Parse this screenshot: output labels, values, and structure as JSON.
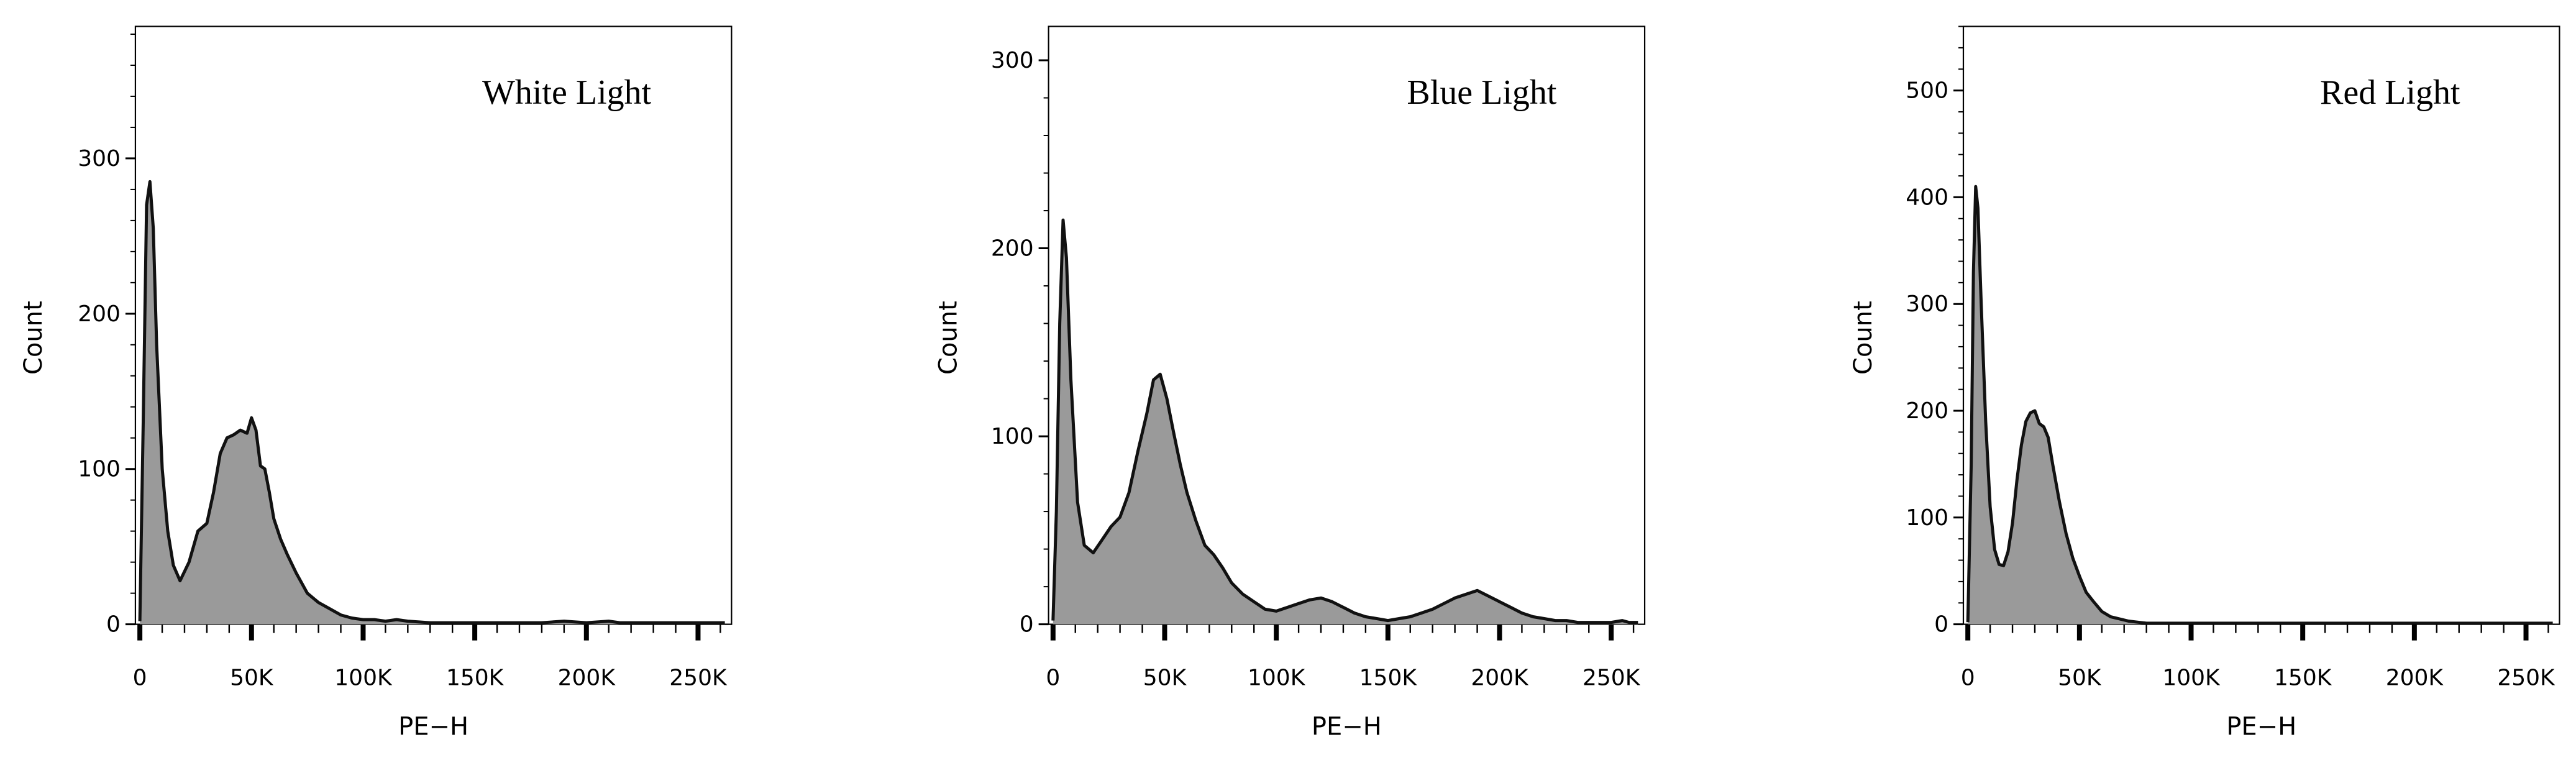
{
  "chart_data": [
    {
      "type": "area",
      "title": "White Light",
      "xlabel": "PE−H",
      "ylabel": "Count",
      "xlim": [
        -2000,
        265000
      ],
      "ylim": [
        0,
        385
      ],
      "xticks": [
        0,
        50000,
        100000,
        150000,
        200000,
        250000
      ],
      "xtick_labels": [
        "0",
        "50K",
        "100K",
        "150K",
        "200K",
        "250K"
      ],
      "yticks": [
        0,
        100,
        200,
        300
      ],
      "ytick_labels": [
        "0",
        "100",
        "200",
        "300"
      ],
      "fill_color": "#9a9a9a",
      "line_color": "#111111",
      "grid": false,
      "x": [
        0,
        1500,
        3000,
        4500,
        6000,
        7500,
        10000,
        12500,
        15000,
        18000,
        22000,
        26000,
        30000,
        33000,
        36000,
        39000,
        42000,
        45000,
        48000,
        50000,
        52000,
        54000,
        56000,
        58000,
        60000,
        63000,
        66000,
        70000,
        75000,
        80000,
        85000,
        90000,
        95000,
        100000,
        105000,
        110000,
        115000,
        120000,
        130000,
        150000,
        180000,
        190000,
        200000,
        210000,
        215000,
        230000,
        250000,
        262000
      ],
      "y": [
        2,
        130,
        270,
        285,
        255,
        180,
        100,
        60,
        38,
        28,
        40,
        60,
        65,
        85,
        110,
        120,
        122,
        125,
        123,
        133,
        125,
        102,
        100,
        85,
        68,
        55,
        45,
        33,
        20,
        14,
        10,
        6,
        4,
        3,
        3,
        2,
        3,
        2,
        1,
        1,
        1,
        2,
        1,
        2,
        1,
        1,
        1,
        1
      ]
    },
    {
      "type": "area",
      "title": "Blue Light",
      "xlabel": "PE−H",
      "ylabel": "Count",
      "xlim": [
        -2000,
        265000
      ],
      "ylim": [
        0,
        318
      ],
      "xticks": [
        0,
        50000,
        100000,
        150000,
        200000,
        250000
      ],
      "xtick_labels": [
        "0",
        "50K",
        "100K",
        "150K",
        "200K",
        "250K"
      ],
      "yticks": [
        0,
        100,
        200,
        300
      ],
      "ytick_labels": [
        "0",
        "100",
        "200",
        "300"
      ],
      "fill_color": "#9a9a9a",
      "line_color": "#111111",
      "grid": false,
      "x": [
        0,
        1500,
        3000,
        4500,
        6000,
        8000,
        11000,
        14000,
        18000,
        22000,
        26000,
        30000,
        34000,
        38000,
        42000,
        45000,
        48000,
        51000,
        54000,
        57000,
        60000,
        64000,
        68000,
        72000,
        76000,
        80000,
        85000,
        90000,
        95000,
        100000,
        105000,
        110000,
        115000,
        120000,
        125000,
        130000,
        135000,
        140000,
        145000,
        150000,
        155000,
        160000,
        165000,
        170000,
        175000,
        180000,
        185000,
        190000,
        195000,
        200000,
        205000,
        210000,
        215000,
        220000,
        225000,
        230000,
        235000,
        240000,
        245000,
        250000,
        255000,
        258000,
        262000
      ],
      "y": [
        2,
        60,
        160,
        215,
        195,
        130,
        65,
        42,
        38,
        45,
        52,
        57,
        70,
        92,
        112,
        130,
        133,
        120,
        102,
        85,
        70,
        55,
        42,
        37,
        30,
        22,
        16,
        12,
        8,
        7,
        9,
        11,
        13,
        14,
        12,
        9,
        6,
        4,
        3,
        2,
        3,
        4,
        6,
        8,
        11,
        14,
        16,
        18,
        15,
        12,
        9,
        6,
        4,
        3,
        2,
        2,
        1,
        1,
        1,
        1,
        2,
        1,
        1
      ]
    },
    {
      "type": "area",
      "title": "Red Light",
      "xlabel": "PE−H",
      "ylabel": "Count",
      "xlim": [
        -2000,
        265000
      ],
      "ylim": [
        0,
        560
      ],
      "xticks": [
        0,
        50000,
        100000,
        150000,
        200000,
        250000
      ],
      "xtick_labels": [
        "0",
        "50K",
        "100K",
        "150K",
        "200K",
        "250K"
      ],
      "yticks": [
        0,
        100,
        200,
        300,
        400,
        500
      ],
      "ytick_labels": [
        "0",
        "100",
        "200",
        "300",
        "400",
        "500"
      ],
      "fill_color": "#9a9a9a",
      "line_color": "#111111",
      "grid": false,
      "x": [
        0,
        1500,
        2500,
        3500,
        4500,
        6000,
        8000,
        10000,
        12000,
        14000,
        16000,
        18000,
        20000,
        22000,
        24000,
        26000,
        28000,
        30000,
        32000,
        34000,
        36000,
        38000,
        41000,
        44000,
        47000,
        50000,
        53000,
        56000,
        60000,
        64000,
        68000,
        72000,
        76000,
        80000,
        90000,
        100000,
        110000,
        130000,
        160000,
        200000,
        240000,
        262000
      ],
      "y": [
        2,
        150,
        330,
        410,
        390,
        300,
        190,
        110,
        70,
        56,
        55,
        68,
        95,
        135,
        168,
        190,
        198,
        200,
        188,
        185,
        175,
        150,
        115,
        85,
        62,
        45,
        30,
        22,
        12,
        7,
        5,
        3,
        2,
        1,
        1,
        1,
        1,
        1,
        1,
        1,
        1,
        1
      ]
    }
  ]
}
